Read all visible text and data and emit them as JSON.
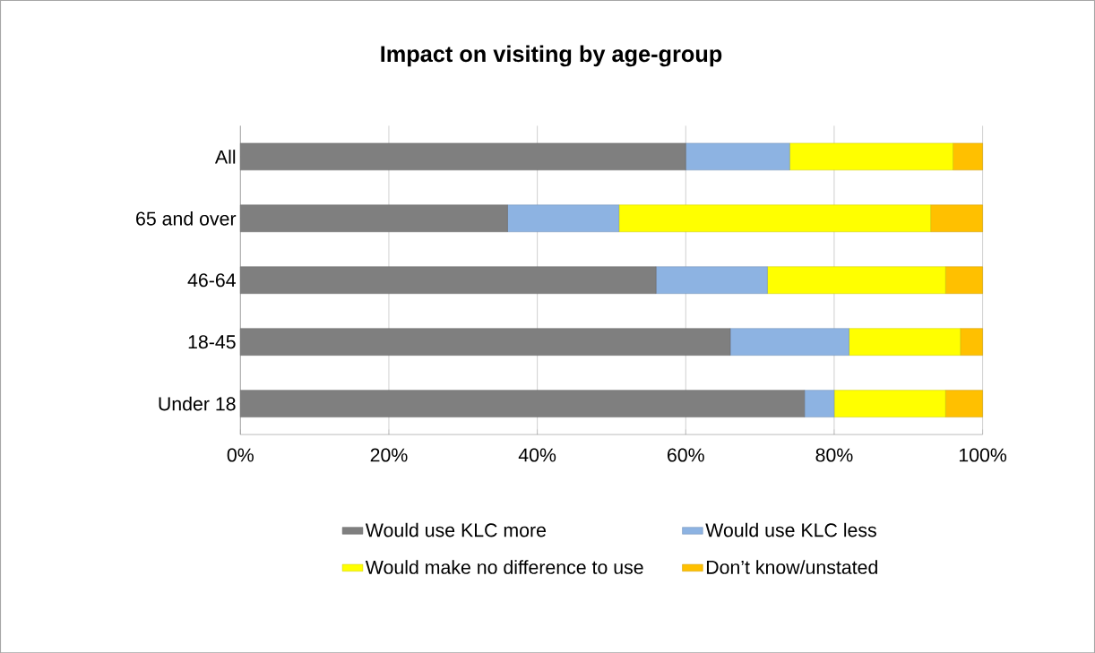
{
  "chart_data": {
    "type": "bar",
    "orientation": "horizontal",
    "stacked": true,
    "title": "Impact on visiting by age-group",
    "categories": [
      "All",
      "65 and over",
      "46-64",
      "18-45",
      "Under 18"
    ],
    "series": [
      {
        "name": "Would use KLC more",
        "color": "#7f7f7f",
        "values": [
          60,
          36,
          56,
          66,
          76
        ]
      },
      {
        "name": "Would use KLC less",
        "color": "#8db3e2",
        "values": [
          14,
          15,
          15,
          16,
          4
        ]
      },
      {
        "name": "Would make no difference to use",
        "color": "#ffff00",
        "values": [
          22,
          42,
          24,
          15,
          15
        ]
      },
      {
        "name": "Don’t know/unstated",
        "color": "#ffc000",
        "values": [
          4,
          7,
          5,
          3,
          5
        ]
      }
    ],
    "xlim": [
      0,
      100
    ],
    "xticks": [
      {
        "value": 0,
        "label": "0%"
      },
      {
        "value": 20,
        "label": "20%"
      },
      {
        "value": 40,
        "label": "40%"
      },
      {
        "value": 60,
        "label": "60%"
      },
      {
        "value": 80,
        "label": "80%"
      },
      {
        "value": 100,
        "label": "100%"
      }
    ],
    "grid": "x",
    "legend": "bottom"
  }
}
